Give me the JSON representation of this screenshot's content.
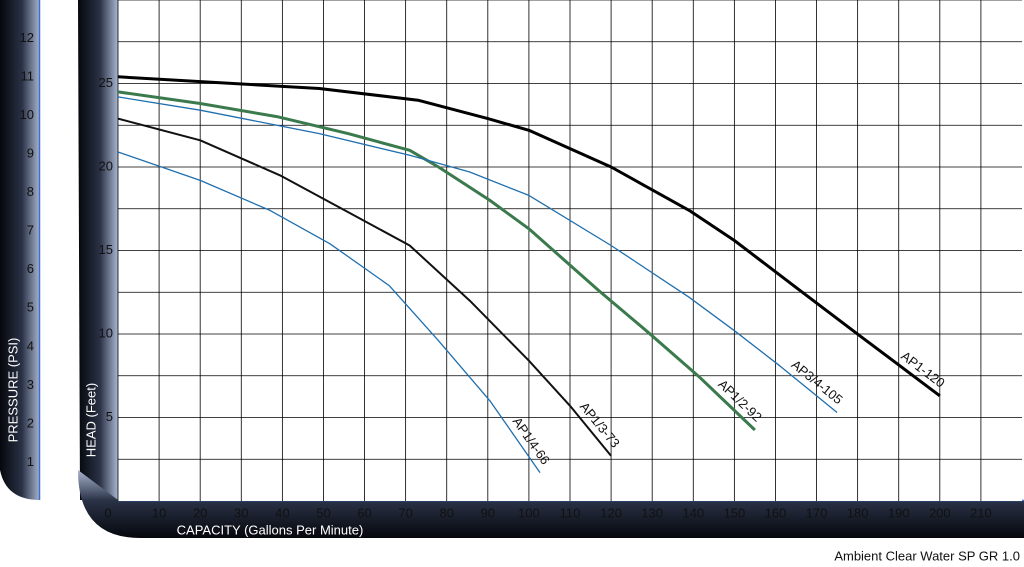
{
  "chart_data": {
    "type": "line",
    "xlabel": "CAPACITY (Gallons Per Minute)",
    "ylabel": "HEAD (Feet)",
    "y2label": "PRESSURE (PSI)",
    "note": "Ambient Clear Water SP GR 1.0",
    "xlim": [
      0,
      220
    ],
    "xticks": [
      0,
      10,
      20,
      30,
      40,
      50,
      60,
      70,
      80,
      90,
      100,
      110,
      120,
      130,
      140,
      150,
      160,
      170,
      180,
      190,
      200,
      210
    ],
    "ylim": [
      0,
      30
    ],
    "yticks": [
      5,
      10,
      15,
      20,
      25
    ],
    "yminor": [
      2.5,
      7.5,
      12.5,
      17.5,
      22.5,
      27.5,
      30
    ],
    "y2lim": [
      0,
      13
    ],
    "y2ticks": [
      1,
      2,
      3,
      4,
      5,
      6,
      7,
      8,
      9,
      10,
      11,
      12
    ],
    "grid": true,
    "series": [
      {
        "name": "AP1-120",
        "color": "#000000",
        "line_width": 3,
        "x": [
          0,
          49,
          73,
          90,
          100,
          110,
          120,
          139,
          150,
          166,
          180.5,
          200
        ],
        "values": [
          25.4,
          24.7,
          24,
          22.9,
          22.2,
          21.1,
          20,
          17.4,
          15.6,
          12.6,
          9.9,
          6.3
        ]
      },
      {
        "name": "AP1/2-92",
        "color": "#3b7a4c",
        "line_width": 3,
        "x": [
          0,
          20,
          39,
          56,
          71,
          78,
          90.5,
          100,
          117,
          129,
          141.6,
          155
        ],
        "values": [
          24.5,
          23.8,
          23,
          22,
          21,
          20,
          18,
          16.3,
          12.6,
          10.1,
          7.4,
          4.25
        ]
      },
      {
        "name": "AP3/4-105",
        "color": "#1f6fae",
        "line_width": 1.3,
        "x": [
          0,
          20,
          49,
          71,
          85.6,
          100,
          120,
          139,
          150,
          161,
          175
        ],
        "values": [
          24.2,
          23.4,
          22,
          20.7,
          19.7,
          18.3,
          15.3,
          12.2,
          10.2,
          8.1,
          5.3
        ]
      },
      {
        "name": "AP1/3-73",
        "color": "#111111",
        "line_width": 2,
        "x": [
          0,
          20,
          39.4,
          56,
          71,
          85.6,
          100,
          110,
          120
        ],
        "values": [
          22.9,
          21.6,
          19.5,
          17.3,
          15.3,
          12,
          8.4,
          5.7,
          2.7
        ]
      },
      {
        "name": "AP1/4-66",
        "color": "#1f6fae",
        "line_width": 1.3,
        "x": [
          0,
          20,
          37,
          51.6,
          66,
          78,
          90.5,
          102.7
        ],
        "values": [
          20.9,
          19.2,
          17.4,
          15.4,
          12.9,
          9.6,
          6,
          1.7
        ]
      }
    ]
  }
}
